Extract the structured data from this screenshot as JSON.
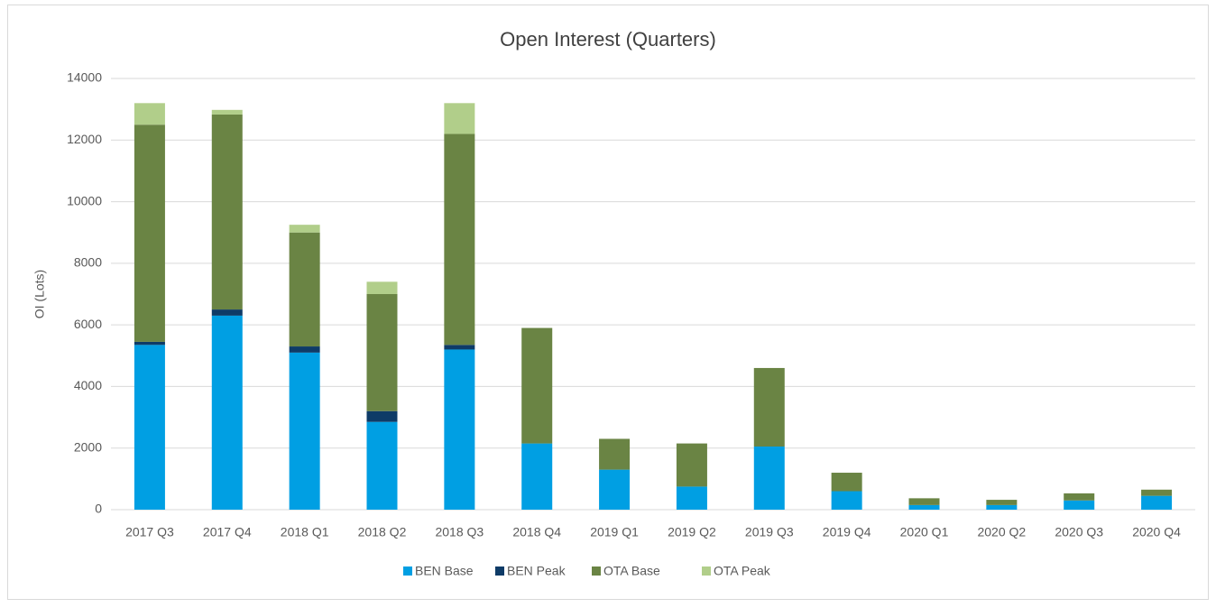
{
  "chart_data": {
    "type": "stacked_bar",
    "title": "Open Interest (Quarters)",
    "y_label": "OI (Lots)",
    "categories": [
      "2017 Q3",
      "2017 Q4",
      "2018 Q1",
      "2018 Q2",
      "2018 Q3",
      "2018 Q4",
      "2019 Q1",
      "2019 Q2",
      "2019 Q3",
      "2019 Q4",
      "2020 Q1",
      "2020 Q2",
      "2020 Q3",
      "2020 Q4"
    ],
    "series": [
      {
        "name": "BEN Base",
        "color": "#009fe3",
        "values": [
          5350,
          6300,
          5100,
          2850,
          5200,
          2150,
          1300,
          750,
          2050,
          600,
          150,
          150,
          300,
          450
        ]
      },
      {
        "name": "BEN Peak",
        "color": "#0e3b67",
        "values": [
          100,
          200,
          200,
          350,
          150,
          0,
          0,
          0,
          0,
          0,
          0,
          0,
          0,
          0
        ]
      },
      {
        "name": "OTA Base",
        "color": "#6a8444",
        "values": [
          7050,
          6330,
          3700,
          3800,
          6850,
          3750,
          1000,
          1400,
          2550,
          600,
          220,
          170,
          230,
          200
        ]
      },
      {
        "name": "OTA Peak",
        "color": "#b1ce8a",
        "values": [
          700,
          150,
          250,
          400,
          1000,
          0,
          0,
          0,
          0,
          0,
          0,
          0,
          0,
          0
        ]
      }
    ],
    "ylim": [
      0,
      14000
    ],
    "yticks": [
      0,
      2000,
      4000,
      6000,
      8000,
      10000,
      12000,
      14000
    ],
    "grid": true,
    "legend": "bottom"
  }
}
